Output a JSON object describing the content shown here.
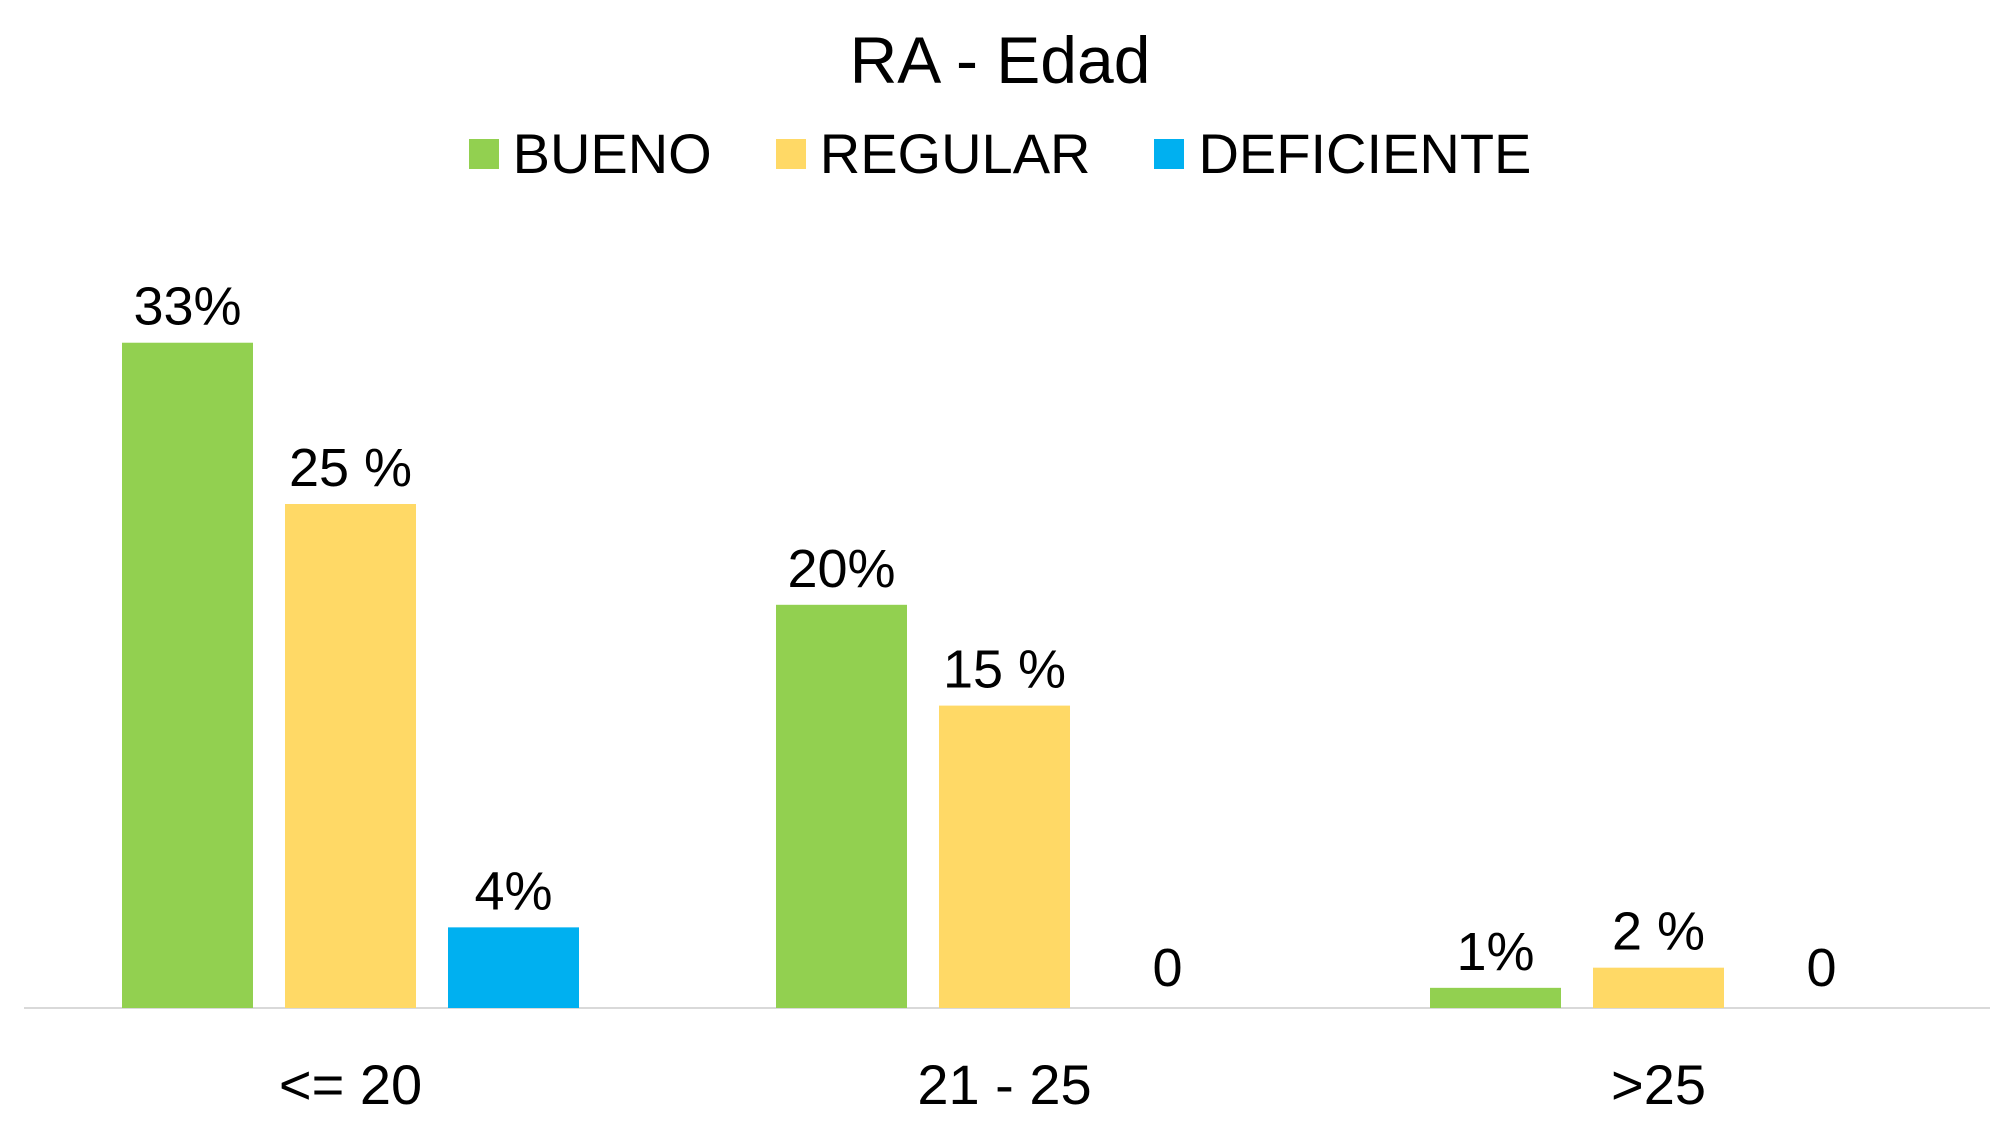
{
  "chart_data": {
    "type": "bar",
    "title": "RA - Edad",
    "categories": [
      "<= 20",
      "21 - 25",
      ">25"
    ],
    "series": [
      {
        "name": "BUENO",
        "color": "#92d050",
        "values": [
          33,
          20,
          1
        ],
        "labels": [
          "33%",
          "20%",
          "1%"
        ]
      },
      {
        "name": "REGULAR",
        "color": "#ffd966",
        "values": [
          25,
          15,
          2
        ],
        "labels": [
          "25 %",
          "15 %",
          "2 %"
        ]
      },
      {
        "name": "DEFICIENTE",
        "color": "#00b0f0",
        "values": [
          4,
          0,
          0
        ],
        "labels": [
          "4%",
          "0",
          "0"
        ]
      }
    ],
    "ylim": [
      0,
      35
    ],
    "xlabel": "",
    "ylabel": "",
    "grid": false,
    "legend_position": "top-center",
    "axis_color": "#d9d9d9"
  }
}
